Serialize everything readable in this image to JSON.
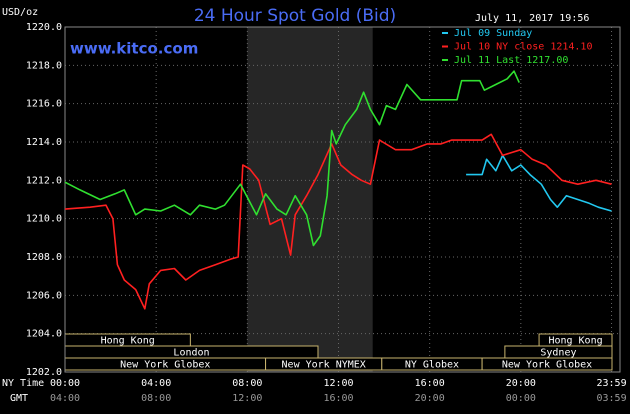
{
  "chart_data": {
    "type": "line",
    "title": "24 Hour Spot Gold (Bid)",
    "unit_label": "USD/oz",
    "site": "www.kitco.com",
    "timestamp": "July 11, 2017 19:56",
    "x_row_labels": [
      "NY Time",
      "GMT"
    ],
    "xlim": [
      0,
      24
    ],
    "ylim": [
      1202,
      1220
    ],
    "grid": true,
    "shaded": [
      8,
      13.5
    ],
    "yticks": [
      {
        "value": 1202,
        "label": "1202.0"
      },
      {
        "value": 1204,
        "label": "1204.0"
      },
      {
        "value": 1206,
        "label": "1206.0"
      },
      {
        "value": 1208,
        "label": "1208.0"
      },
      {
        "value": 1210,
        "label": "1210.0"
      },
      {
        "value": 1212,
        "label": "1212.0"
      },
      {
        "value": 1214,
        "label": "1214.0"
      },
      {
        "value": 1216,
        "label": "1216.0"
      },
      {
        "value": 1218,
        "label": "1218.0"
      },
      {
        "value": 1220,
        "label": "1220.0"
      }
    ],
    "xticks": [
      {
        "value": 0,
        "label": "00:00"
      },
      {
        "value": 4,
        "label": "04:00"
      },
      {
        "value": 8,
        "label": "08:00"
      },
      {
        "value": 12,
        "label": "12:00"
      },
      {
        "value": 16,
        "label": "16:00"
      },
      {
        "value": 20,
        "label": "20:00"
      },
      {
        "value": 23.98,
        "label": "23:59"
      }
    ],
    "gmt_ticks": [
      {
        "value": 0,
        "label": "04:00"
      },
      {
        "value": 4,
        "label": "08:00"
      },
      {
        "value": 8,
        "label": "12:00"
      },
      {
        "value": 12,
        "label": "16:00"
      },
      {
        "value": 16,
        "label": "20:00"
      },
      {
        "value": 20,
        "label": "00:00"
      },
      {
        "value": 23.98,
        "label": "03:59"
      }
    ],
    "sessions": [
      {
        "label": "Hong Kong",
        "row": 0,
        "start": 0,
        "end": 5.5
      },
      {
        "label": "Hong Kong",
        "row": 0,
        "start": 20.8,
        "end": 24
      },
      {
        "label": "London",
        "row": 1,
        "start": 0,
        "end": 11.1
      },
      {
        "label": "Sydney",
        "row": 1,
        "start": 19.3,
        "end": 24
      },
      {
        "label": "New York Globex",
        "row": 2,
        "start": 0,
        "end": 8.8
      },
      {
        "label": "New York NYMEX",
        "row": 2,
        "start": 8.8,
        "end": 13.9
      },
      {
        "label": "NY Globex",
        "row": 2,
        "start": 13.9,
        "end": 18.3
      },
      {
        "label": "New York Globex",
        "row": 2,
        "start": 18.3,
        "end": 24
      }
    ],
    "series": [
      {
        "name": "Jul 09 Sunday",
        "color": "#22c8f0",
        "x": [
          17.6,
          18.3,
          18.5,
          18.9,
          19.2,
          19.6,
          20.0,
          20.4,
          20.9,
          21.3,
          21.6,
          22.0,
          22.5,
          23.0,
          23.4,
          23.98
        ],
        "values": [
          1212.3,
          1212.3,
          1213.1,
          1212.5,
          1213.3,
          1212.5,
          1212.8,
          1212.3,
          1211.8,
          1211.0,
          1210.6,
          1211.2,
          1211.0,
          1210.8,
          1210.6,
          1210.4
        ]
      },
      {
        "name": "Jul 10 NY close 1214.10",
        "color": "#ff2020",
        "x": [
          0,
          1.1,
          1.8,
          2.1,
          2.3,
          2.6,
          3.1,
          3.5,
          3.7,
          4.2,
          4.8,
          5.3,
          5.9,
          6.6,
          7.3,
          7.6,
          7.8,
          8.1,
          8.5,
          9.0,
          9.5,
          9.9,
          10.1,
          10.6,
          11.1,
          11.7,
          12.1,
          12.6,
          13.0,
          13.4,
          13.8,
          14.5,
          15.2,
          15.9,
          16.5,
          16.96,
          18.3,
          18.7,
          19.2,
          20.0,
          20.5,
          21.1,
          21.8,
          22.5,
          23.3,
          23.98
        ],
        "values": [
          1210.5,
          1210.6,
          1210.7,
          1210.0,
          1207.6,
          1206.8,
          1206.3,
          1205.3,
          1206.6,
          1207.3,
          1207.4,
          1206.8,
          1207.3,
          1207.6,
          1207.9,
          1208.0,
          1212.8,
          1212.6,
          1212.0,
          1209.7,
          1210.0,
          1208.1,
          1210.2,
          1211.2,
          1212.3,
          1213.9,
          1212.8,
          1212.3,
          1212.0,
          1211.8,
          1214.1,
          1213.6,
          1213.6,
          1213.9,
          1213.9,
          1214.1,
          1214.1,
          1214.4,
          1213.3,
          1213.6,
          1213.1,
          1212.8,
          1212.0,
          1211.8,
          1212.0,
          1211.8
        ]
      },
      {
        "name": "Jul 11 Last 1217.00",
        "color": "#30e030",
        "x": [
          0,
          0.66,
          1.54,
          2.2,
          2.6,
          3.1,
          3.5,
          4.2,
          4.8,
          5.5,
          5.9,
          6.6,
          7.0,
          7.7,
          8.4,
          8.8,
          9.3,
          9.7,
          10.1,
          10.6,
          10.9,
          11.2,
          11.5,
          11.7,
          11.9,
          12.3,
          12.8,
          13.1,
          13.4,
          13.8,
          14.1,
          14.5,
          15.0,
          15.6,
          16.5,
          17.2,
          17.4,
          18.2,
          18.4,
          18.9,
          19.4,
          19.7,
          19.93
        ],
        "values": [
          1211.9,
          1211.5,
          1211.0,
          1211.3,
          1211.5,
          1210.2,
          1210.5,
          1210.4,
          1210.7,
          1210.2,
          1210.7,
          1210.5,
          1210.7,
          1211.8,
          1210.2,
          1211.3,
          1210.5,
          1210.2,
          1211.2,
          1210.2,
          1208.6,
          1209.1,
          1211.2,
          1214.6,
          1213.9,
          1214.9,
          1215.7,
          1216.6,
          1215.7,
          1214.9,
          1215.9,
          1215.7,
          1217.0,
          1216.2,
          1216.2,
          1216.2,
          1217.2,
          1217.2,
          1216.7,
          1217.0,
          1217.3,
          1217.7,
          1217.1
        ]
      }
    ]
  }
}
